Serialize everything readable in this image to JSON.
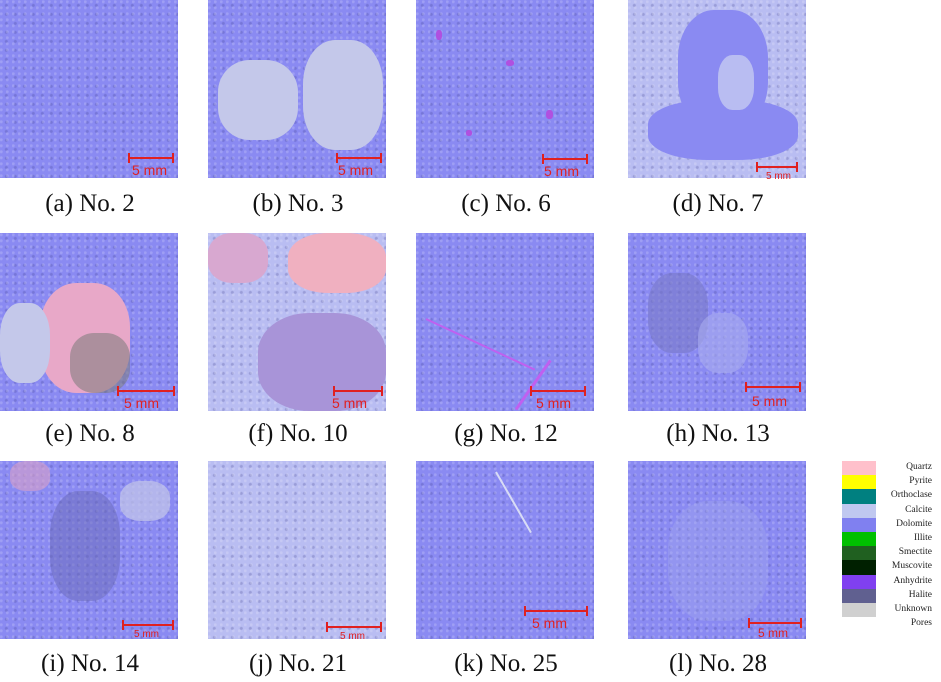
{
  "panels": [
    {
      "caption": "(a) No. 2",
      "scale": "5 mm",
      "style": "dark"
    },
    {
      "caption": "(b) No. 3",
      "scale": "5 mm",
      "style": "mixed"
    },
    {
      "caption": "(c) No. 6",
      "scale": "5 mm",
      "style": "dark"
    },
    {
      "caption": "(d) No. 7",
      "scale": "5 mm",
      "style": "light"
    },
    {
      "caption": "(e) No. 8",
      "scale": "5 mm",
      "style": "pink"
    },
    {
      "caption": "(f) No. 10",
      "scale": "5 mm",
      "style": "pinklight"
    },
    {
      "caption": "(g) No. 12",
      "scale": "5 mm",
      "style": "dark"
    },
    {
      "caption": "(h) No. 13",
      "scale": "5 mm",
      "style": "dark"
    },
    {
      "caption": "(i) No. 14",
      "scale": "5 mm",
      "style": "dark"
    },
    {
      "caption": "(j) No. 21",
      "scale": "5 mm",
      "style": "light"
    },
    {
      "caption": "(k) No. 25",
      "scale": "5 mm",
      "style": "dark"
    },
    {
      "caption": "(l) No. 28",
      "scale": "5 mm",
      "style": "dark"
    }
  ],
  "legend": [
    {
      "label": "Quartz",
      "color": "#ffc0cb"
    },
    {
      "label": "Pyrite",
      "color": "#ffff00"
    },
    {
      "label": "Orthoclase",
      "color": "#008080"
    },
    {
      "label": "Calcite",
      "color": "#c0c8f0"
    },
    {
      "label": "Dolomite",
      "color": "#8080f0"
    },
    {
      "label": "Illite",
      "color": "#00c000"
    },
    {
      "label": "Smectite",
      "color": "#206020"
    },
    {
      "label": "Muscovite",
      "color": "#002000"
    },
    {
      "label": "Anhydrite",
      "color": "#8040f0"
    },
    {
      "label": "Halite",
      "color": "#606090"
    },
    {
      "label": "Unknown",
      "color": "#d0d0d0"
    },
    {
      "label": "Pores",
      "color": "#ffffff"
    }
  ]
}
